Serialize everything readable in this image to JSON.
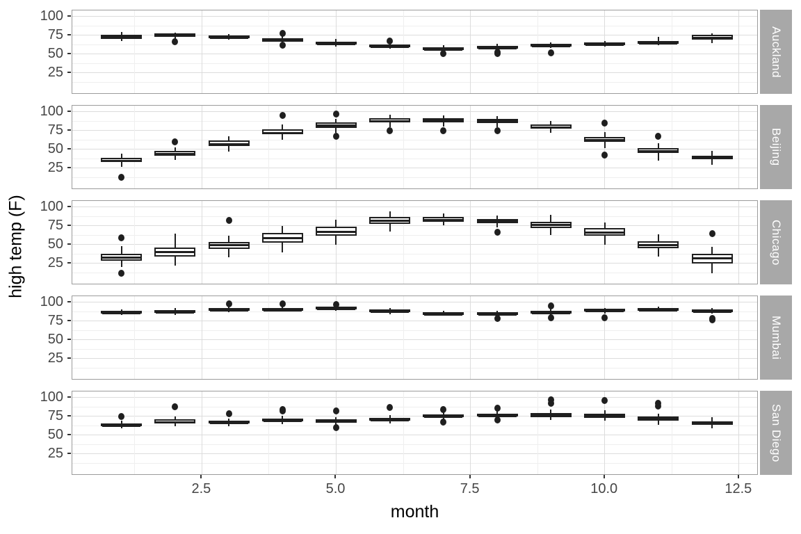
{
  "chart_data": {
    "type": "boxplot",
    "title": "",
    "xlabel": "month",
    "ylabel": "high temp (F)",
    "legend": "none",
    "grid": "on",
    "facet_side": "right",
    "x_ticks": [
      2.5,
      5.0,
      7.5,
      10.0,
      12.5
    ],
    "x_tick_labels": [
      "2.5",
      "5.0",
      "7.5",
      "10.0",
      "12.5"
    ],
    "x_minor_ticks": [
      1.25,
      3.75,
      6.25,
      8.75,
      11.25
    ],
    "y_ticks": [
      100,
      75,
      50,
      25
    ],
    "y_tick_labels": [
      "100",
      "75",
      "50",
      "25"
    ],
    "y_minor_ticks": [
      87.5,
      62.5,
      37.5,
      12.5
    ],
    "x_domain": [
      0.087,
      12.865
    ],
    "y_domain": [
      -3.71,
      108.33
    ],
    "months": [
      1,
      2,
      3,
      4,
      5,
      6,
      7,
      8,
      9,
      10,
      11,
      12
    ],
    "facets": [
      {
        "label": "Auckland",
        "boxes": [
          {
            "m": 1,
            "lo": 68,
            "q1": 70,
            "med": 73.5,
            "q3": 76,
            "hi": 80,
            "out": []
          },
          {
            "m": 2,
            "lo": 70,
            "q1": 73.5,
            "med": 75.5,
            "q3": 77.5,
            "hi": 79,
            "out": [
              66.5
            ]
          },
          {
            "m": 3,
            "lo": 69,
            "q1": 71.5,
            "med": 73.5,
            "q3": 75,
            "hi": 77,
            "out": []
          },
          {
            "m": 4,
            "lo": 64,
            "q1": 67,
            "med": 69.5,
            "q3": 71.5,
            "hi": 74,
            "out": [
              78,
              62
            ]
          },
          {
            "m": 5,
            "lo": 60,
            "q1": 63,
            "med": 65,
            "q3": 67,
            "hi": 70,
            "out": []
          },
          {
            "m": 6,
            "lo": 57,
            "q1": 59.5,
            "med": 61,
            "q3": 62.5,
            "hi": 65,
            "out": [
              68
            ]
          },
          {
            "m": 7,
            "lo": 54,
            "q1": 56.5,
            "med": 58,
            "q3": 59.5,
            "hi": 62,
            "out": [
              51
            ]
          },
          {
            "m": 8,
            "lo": 55,
            "q1": 57.5,
            "med": 59.5,
            "q3": 61.5,
            "hi": 64,
            "out": [
              53,
              51
            ]
          },
          {
            "m": 9,
            "lo": 58,
            "q1": 60.5,
            "med": 62,
            "q3": 63.5,
            "hi": 66,
            "out": [
              52
            ]
          },
          {
            "m": 10,
            "lo": 60,
            "q1": 62.5,
            "med": 64,
            "q3": 65.5,
            "hi": 68,
            "out": []
          },
          {
            "m": 11,
            "lo": 62,
            "q1": 64.5,
            "med": 66,
            "q3": 68,
            "hi": 73,
            "out": []
          },
          {
            "m": 12,
            "lo": 65,
            "q1": 69.5,
            "med": 73,
            "q3": 76,
            "hi": 78,
            "out": []
          }
        ]
      },
      {
        "label": "Beijing",
        "boxes": [
          {
            "m": 1,
            "lo": 27,
            "q1": 33,
            "med": 36,
            "q3": 39,
            "hi": 44,
            "out": [
              13
            ]
          },
          {
            "m": 2,
            "lo": 36,
            "q1": 42,
            "med": 45,
            "q3": 48,
            "hi": 53,
            "out": [
              60
            ]
          },
          {
            "m": 3,
            "lo": 47,
            "q1": 55,
            "med": 58,
            "q3": 62,
            "hi": 68,
            "out": []
          },
          {
            "m": 4,
            "lo": 63,
            "q1": 70,
            "med": 73,
            "q3": 77,
            "hi": 83,
            "out": [
              95
            ]
          },
          {
            "m": 5,
            "lo": 72,
            "q1": 79,
            "med": 82.5,
            "q3": 86,
            "hi": 91,
            "out": [
              97,
              68
            ]
          },
          {
            "m": 6,
            "lo": 80,
            "q1": 86,
            "med": 88.5,
            "q3": 92,
            "hi": 96,
            "out": [
              75
            ]
          },
          {
            "m": 7,
            "lo": 81,
            "q1": 86,
            "med": 89,
            "q3": 92,
            "hi": 95,
            "out": [
              75
            ]
          },
          {
            "m": 8,
            "lo": 80,
            "q1": 85,
            "med": 88,
            "q3": 91,
            "hi": 94,
            "out": [
              75
            ]
          },
          {
            "m": 9,
            "lo": 72,
            "q1": 78,
            "med": 80.5,
            "q3": 83.5,
            "hi": 88,
            "out": []
          },
          {
            "m": 10,
            "lo": 52,
            "q1": 60,
            "med": 63,
            "q3": 67,
            "hi": 73,
            "out": [
              85,
              43
            ]
          },
          {
            "m": 11,
            "lo": 35,
            "q1": 45,
            "med": 48.5,
            "q3": 52,
            "hi": 58,
            "out": [
              68
            ]
          },
          {
            "m": 12,
            "lo": 30,
            "q1": 37,
            "med": 39.5,
            "q3": 42,
            "hi": 48,
            "out": []
          }
        ]
      },
      {
        "label": "Chicago",
        "boxes": [
          {
            "m": 1,
            "lo": 20,
            "q1": 29,
            "med": 33.5,
            "q3": 38,
            "hi": 48,
            "out": [
              59,
              12
            ]
          },
          {
            "m": 2,
            "lo": 22,
            "q1": 34,
            "med": 41,
            "q3": 46,
            "hi": 65,
            "out": []
          },
          {
            "m": 3,
            "lo": 33,
            "q1": 44,
            "med": 50,
            "q3": 54,
            "hi": 62,
            "out": [
              82
            ]
          },
          {
            "m": 4,
            "lo": 40,
            "q1": 53,
            "med": 60,
            "q3": 66,
            "hi": 75,
            "out": []
          },
          {
            "m": 5,
            "lo": 50,
            "q1": 62,
            "med": 68,
            "q3": 74,
            "hi": 83,
            "out": []
          },
          {
            "m": 6,
            "lo": 68,
            "q1": 78,
            "med": 83,
            "q3": 87,
            "hi": 94,
            "out": []
          },
          {
            "m": 7,
            "lo": 76,
            "q1": 81,
            "med": 84,
            "q3": 87,
            "hi": 92,
            "out": []
          },
          {
            "m": 8,
            "lo": 73,
            "q1": 79,
            "med": 82,
            "q3": 84.5,
            "hi": 89,
            "out": [
              67
            ]
          },
          {
            "m": 9,
            "lo": 63,
            "q1": 72,
            "med": 77,
            "q3": 81,
            "hi": 90,
            "out": []
          },
          {
            "m": 10,
            "lo": 50,
            "q1": 62,
            "med": 67,
            "q3": 72,
            "hi": 80,
            "out": []
          },
          {
            "m": 11,
            "lo": 34,
            "q1": 45,
            "med": 50,
            "q3": 55,
            "hi": 64,
            "out": []
          },
          {
            "m": 12,
            "lo": 12,
            "q1": 25,
            "med": 33,
            "q3": 38,
            "hi": 47,
            "out": [
              65
            ]
          }
        ]
      },
      {
        "label": "Mumbai",
        "boxes": [
          {
            "m": 1,
            "lo": 83,
            "q1": 85,
            "med": 87,
            "q3": 88.5,
            "hi": 91,
            "out": []
          },
          {
            "m": 2,
            "lo": 83,
            "q1": 86,
            "med": 88,
            "q3": 90,
            "hi": 93,
            "out": []
          },
          {
            "m": 3,
            "lo": 87,
            "q1": 89.5,
            "med": 91,
            "q3": 92.5,
            "hi": 95,
            "out": [
              98
            ]
          },
          {
            "m": 4,
            "lo": 88,
            "q1": 90,
            "med": 91.5,
            "q3": 93,
            "hi": 95,
            "out": [
              98
            ]
          },
          {
            "m": 5,
            "lo": 89,
            "q1": 91,
            "med": 92.5,
            "q3": 94,
            "hi": 95.5,
            "out": [
              97
            ]
          },
          {
            "m": 6,
            "lo": 84,
            "q1": 87,
            "med": 89,
            "q3": 91,
            "hi": 93,
            "out": []
          },
          {
            "m": 7,
            "lo": 82,
            "q1": 84,
            "med": 85.5,
            "q3": 87,
            "hi": 89,
            "out": []
          },
          {
            "m": 8,
            "lo": 82,
            "q1": 84,
            "med": 85.5,
            "q3": 87,
            "hi": 89,
            "out": [
              79
            ]
          },
          {
            "m": 9,
            "lo": 83,
            "q1": 85.5,
            "med": 87,
            "q3": 89,
            "hi": 92,
            "out": [
              95,
              80
            ]
          },
          {
            "m": 10,
            "lo": 85,
            "q1": 87.5,
            "med": 90,
            "q3": 91.5,
            "hi": 93,
            "out": [
              80
            ]
          },
          {
            "m": 11,
            "lo": 89,
            "q1": 90.5,
            "med": 92,
            "q3": 93,
            "hi": 94.5,
            "out": []
          },
          {
            "m": 12,
            "lo": 85,
            "q1": 87.5,
            "med": 89,
            "q3": 91,
            "hi": 93,
            "out": [
              79,
              77
            ]
          }
        ]
      },
      {
        "label": "San Diego",
        "boxes": [
          {
            "m": 1,
            "lo": 59,
            "q1": 62,
            "med": 64,
            "q3": 66,
            "hi": 69,
            "out": [
              75
            ]
          },
          {
            "m": 2,
            "lo": 62,
            "q1": 65.5,
            "med": 68,
            "q3": 71,
            "hi": 75,
            "out": [
              88
            ]
          },
          {
            "m": 3,
            "lo": 62,
            "q1": 65.5,
            "med": 67,
            "q3": 69,
            "hi": 72,
            "out": [
              79
            ]
          },
          {
            "m": 4,
            "lo": 65,
            "q1": 68.5,
            "med": 70.5,
            "q3": 72.5,
            "hi": 76,
            "out": [
              84,
              82
            ]
          },
          {
            "m": 5,
            "lo": 63,
            "q1": 67,
            "med": 69,
            "q3": 71,
            "hi": 74,
            "out": [
              82,
              60
            ]
          },
          {
            "m": 6,
            "lo": 66,
            "q1": 69.5,
            "med": 71,
            "q3": 73.5,
            "hi": 77,
            "out": [
              87
            ]
          },
          {
            "m": 7,
            "lo": 70,
            "q1": 74,
            "med": 76,
            "q3": 78,
            "hi": 81,
            "out": [
              84,
              68
            ]
          },
          {
            "m": 8,
            "lo": 71,
            "q1": 75,
            "med": 77,
            "q3": 78.5,
            "hi": 82,
            "out": [
              86,
              70
            ]
          },
          {
            "m": 9,
            "lo": 70,
            "q1": 74.5,
            "med": 77,
            "q3": 80,
            "hi": 84,
            "out": [
              97,
              93
            ]
          },
          {
            "m": 10,
            "lo": 69,
            "q1": 73.5,
            "med": 76,
            "q3": 79,
            "hi": 83,
            "out": [
              96
            ]
          },
          {
            "m": 11,
            "lo": 64,
            "q1": 69.5,
            "med": 72.5,
            "q3": 75,
            "hi": 79,
            "out": [
              93,
              89
            ]
          },
          {
            "m": 12,
            "lo": 59,
            "q1": 63.5,
            "med": 66,
            "q3": 68.5,
            "hi": 74,
            "out": []
          }
        ]
      }
    ],
    "colors": {
      "strip_fill": "#a8a8a8",
      "strip_text": "#ffffff",
      "box_stroke": "#1f1f1f",
      "box_fill": "#ffffff",
      "grid_major": "#dcdcdc",
      "grid_minor": "#efefef",
      "panel_border": "#9b9b9b",
      "axis_text": "#454545",
      "axis_title": "#000000",
      "background": "#ffffff"
    }
  }
}
